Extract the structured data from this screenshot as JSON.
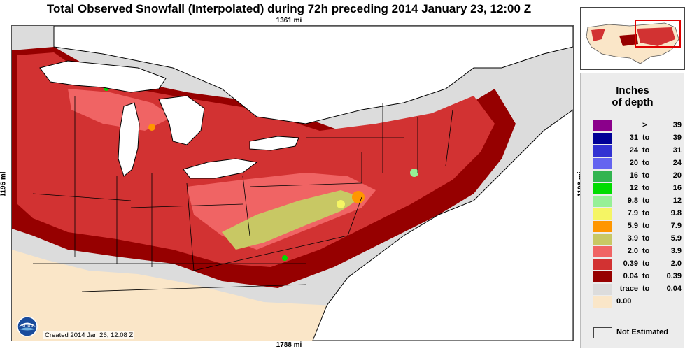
{
  "title": "Total Observed Snowfall (Interpolated) during 72h preceding 2014 January 23, 12:00 Z",
  "dimensions": {
    "top": "1361 mi",
    "bottom": "1788 mi",
    "left": "1196 mi",
    "right": "1196 mi"
  },
  "created": "Created 2014 Jan 26, 12:08 Z",
  "legend": {
    "title_line1": "Inches",
    "title_line2": "of depth",
    "items": [
      {
        "low": "",
        "to": ">",
        "high": "39",
        "color": "#8b008b"
      },
      {
        "low": "31",
        "to": "to",
        "high": "39",
        "color": "#000096"
      },
      {
        "low": "24",
        "to": "to",
        "high": "31",
        "color": "#3232d2"
      },
      {
        "low": "20",
        "to": "to",
        "high": "24",
        "color": "#6464f0"
      },
      {
        "low": "16",
        "to": "to",
        "high": "20",
        "color": "#32b450"
      },
      {
        "low": "12",
        "to": "to",
        "high": "16",
        "color": "#00dc00"
      },
      {
        "low": "9.8",
        "to": "to",
        "high": "12",
        "color": "#96f096"
      },
      {
        "low": "7.9",
        "to": "to",
        "high": "9.8",
        "color": "#f5f564"
      },
      {
        "low": "5.9",
        "to": "to",
        "high": "7.9",
        "color": "#ff9600"
      },
      {
        "low": "3.9",
        "to": "to",
        "high": "5.9",
        "color": "#c8c864"
      },
      {
        "low": "2.0",
        "to": "to",
        "high": "3.9",
        "color": "#f06464"
      },
      {
        "low": "0.39",
        "to": "to",
        "high": "2.0",
        "color": "#d23232"
      },
      {
        "low": "0.04",
        "to": "to",
        "high": "0.39",
        "color": "#960000"
      },
      {
        "low": "trace",
        "to": "to",
        "high": "0.04",
        "color": "#dcdcdc"
      }
    ],
    "zero": {
      "label": "0.00",
      "color": "#fae6c8"
    },
    "not_estimated": "Not Estimated"
  },
  "logo_text": "NOAA",
  "colors": {
    "water": "#ffffff",
    "bare_ground": "#fae6c8",
    "trace": "#dcdcdc",
    "light": "#960000",
    "moderate": "#d23232",
    "heavy": "#f06464"
  }
}
